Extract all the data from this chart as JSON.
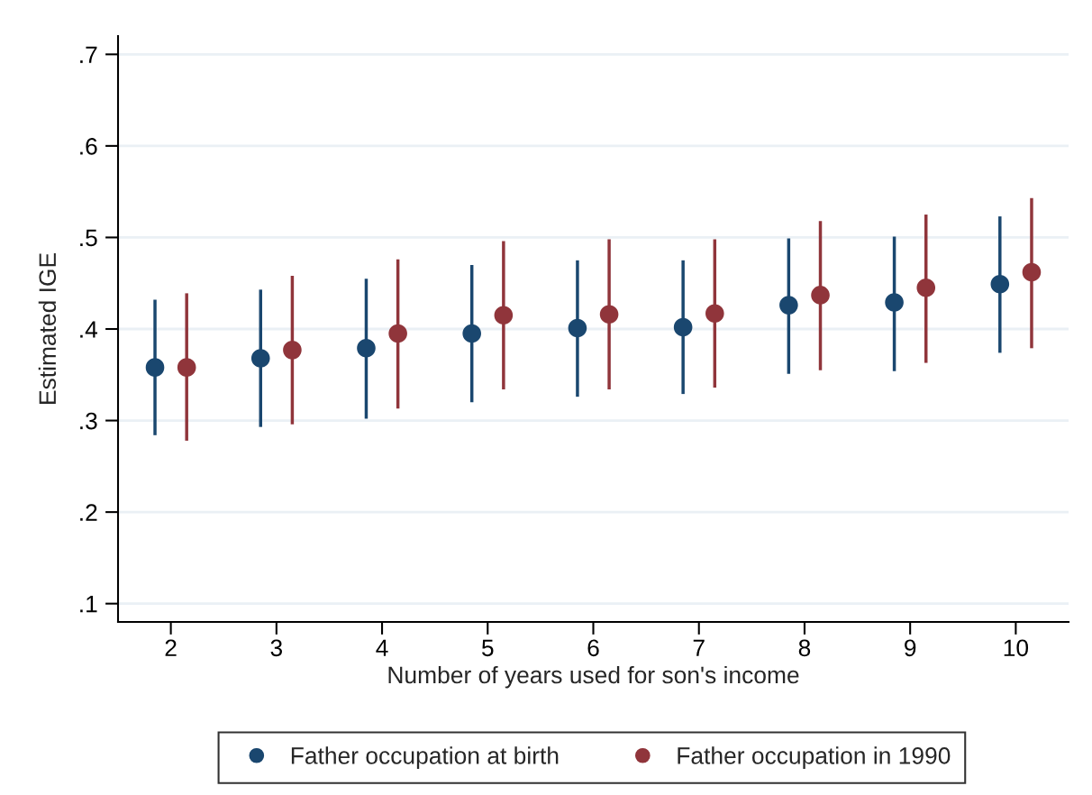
{
  "chart_data": {
    "type": "scatter",
    "xlabel": "Number of years used for son's income",
    "ylabel": "Estimated IGE",
    "series": [
      {
        "name": "Father occupation at birth",
        "color": "#1a476f",
        "x": [
          1.85,
          2.85,
          3.85,
          4.85,
          5.85,
          6.85,
          7.85,
          8.85,
          9.85
        ],
        "values": [
          0.358,
          0.368,
          0.379,
          0.395,
          0.401,
          0.402,
          0.426,
          0.429,
          0.449
        ],
        "errors": [
          [
            0.284,
            0.432
          ],
          [
            0.293,
            0.443
          ],
          [
            0.302,
            0.455
          ],
          [
            0.32,
            0.47
          ],
          [
            0.326,
            0.475
          ],
          [
            0.329,
            0.475
          ],
          [
            0.351,
            0.499
          ],
          [
            0.354,
            0.501
          ],
          [
            0.374,
            0.523
          ]
        ]
      },
      {
        "name": "Father occupation in 1990",
        "color": "#90353b",
        "x": [
          2.15,
          3.15,
          4.15,
          5.15,
          6.15,
          7.15,
          8.15,
          9.15,
          10.15
        ],
        "values": [
          0.358,
          0.377,
          0.395,
          0.415,
          0.416,
          0.417,
          0.437,
          0.445,
          0.462
        ],
        "errors": [
          [
            0.278,
            0.439
          ],
          [
            0.296,
            0.458
          ],
          [
            0.313,
            0.476
          ],
          [
            0.334,
            0.496
          ],
          [
            0.334,
            0.498
          ],
          [
            0.336,
            0.498
          ],
          [
            0.355,
            0.518
          ],
          [
            0.363,
            0.525
          ],
          [
            0.379,
            0.543
          ]
        ]
      }
    ],
    "xlim": [
      1.5,
      10.5
    ],
    "xticks": [
      2,
      3,
      4,
      5,
      6,
      7,
      8,
      9,
      10
    ],
    "ylim": [
      0.08,
      0.72
    ],
    "yticks": [
      {
        "value": 0.1,
        "label": ".1"
      },
      {
        "value": 0.2,
        "label": ".2"
      },
      {
        "value": 0.3,
        "label": ".3"
      },
      {
        "value": 0.4,
        "label": ".4"
      },
      {
        "value": 0.5,
        "label": ".5"
      },
      {
        "value": 0.6,
        "label": ".6"
      },
      {
        "value": 0.7,
        "label": ".7"
      }
    ],
    "grid": "y",
    "legend": "bottom",
    "marker": "circle"
  }
}
